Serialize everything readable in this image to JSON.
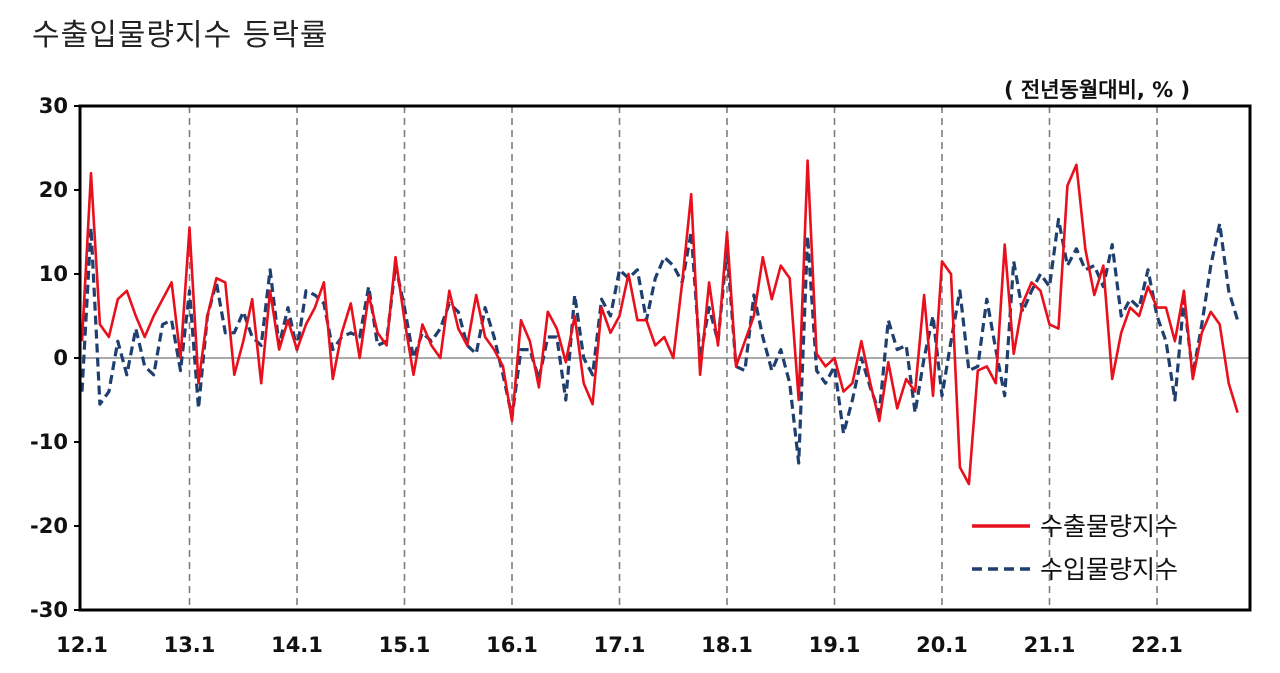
{
  "header": {
    "title": "수출입물량지수 등락률",
    "unit": "( 전년동월대비, % )"
  },
  "colors": {
    "export": "#e8101c",
    "import": "#1f3f6e",
    "grid": "#7f7f7f"
  },
  "chart_data": {
    "type": "line",
    "title": "수출입물량지수 등락률",
    "ylabel": "( 전년동월대비, % )",
    "xlabel": "",
    "ylim": [
      -30,
      30
    ],
    "yticks": [
      30,
      20,
      10,
      0,
      -10,
      -20,
      -30
    ],
    "xticks": [
      "12.1",
      "13.1",
      "14.1",
      "15.1",
      "16.1",
      "17.1",
      "18.1",
      "19.1",
      "20.1",
      "21.1",
      "22.1"
    ],
    "grid": "vertical dashed at each January",
    "legend_position": "bottom-right",
    "series": [
      {
        "name": "수출물량지수",
        "style": "solid",
        "color": "#e8101c",
        "values": [
          2,
          22,
          4,
          2.5,
          7,
          8,
          5,
          2.5,
          5,
          7,
          9,
          0,
          15.5,
          -3,
          5,
          9.5,
          9,
          -2,
          2,
          7,
          -3,
          8,
          1,
          4.5,
          1,
          4,
          6,
          9,
          -2.5,
          3,
          6.5,
          0,
          7.5,
          3,
          1.5,
          12,
          4.5,
          -2,
          4,
          1.5,
          0,
          8,
          3.5,
          1.5,
          7.5,
          2.5,
          1,
          -1,
          -7.5,
          4.5,
          2,
          -3.5,
          5.5,
          3.5,
          -0.5,
          5,
          -3,
          -5.5,
          6,
          3,
          5,
          10,
          4.5,
          4.5,
          1.5,
          2.5,
          0,
          9,
          19.5,
          -2,
          9,
          1.5,
          15,
          -1,
          2,
          5,
          12,
          7,
          11,
          9.5,
          -5,
          23.5,
          0.5,
          -1,
          0,
          -4,
          -3,
          2,
          -3,
          -7.5,
          -0.5,
          -6,
          -2.5,
          -4,
          7.5,
          -4.5,
          11.5,
          10,
          -13,
          -15,
          -1.5,
          -1,
          -3,
          13.5,
          0.5,
          6.5,
          9,
          8,
          4,
          3.5,
          20.5,
          23,
          13,
          7.5,
          11,
          -2.5,
          3,
          6,
          5,
          8.5,
          6,
          6,
          2,
          8,
          -2.5,
          3,
          5.5,
          4,
          -3,
          -6.5
        ]
      },
      {
        "name": "수입물량지수",
        "style": "dashed",
        "color": "#1f3f6e",
        "values": [
          -4,
          15.5,
          -5.5,
          -4,
          2,
          -2,
          3.5,
          -1,
          -2,
          4,
          4.5,
          -1.5,
          8,
          -6,
          5,
          9,
          3,
          3,
          5.5,
          2.5,
          1.5,
          10.5,
          1.5,
          6,
          1,
          8,
          7.5,
          6.5,
          1,
          2.5,
          3,
          2.5,
          8.5,
          1.5,
          2,
          11,
          6,
          0,
          3,
          2,
          3.5,
          6.5,
          5.5,
          1.5,
          0.5,
          6,
          2.5,
          -2,
          -7,
          1,
          1,
          -2.5,
          2.5,
          2.5,
          -5,
          7.5,
          0,
          -2,
          7,
          5,
          10.5,
          9.5,
          10.5,
          4.5,
          9.5,
          12,
          11,
          9,
          15,
          0,
          6,
          2,
          13,
          -1,
          -1.5,
          7.5,
          2.5,
          -1.5,
          1,
          -3,
          -12.5,
          14.5,
          -1.5,
          -3,
          -1,
          -9,
          -5,
          0,
          -3.5,
          -6.5,
          4.5,
          1,
          1.5,
          -6.5,
          0,
          5,
          -4.5,
          2,
          8,
          -1.5,
          -1,
          7,
          1,
          -4.5,
          11.5,
          5.5,
          8,
          10,
          8.5,
          16.5,
          11,
          13,
          10.5,
          11,
          8.5,
          13.5,
          5,
          7,
          6,
          10.5,
          5,
          2,
          -5,
          7,
          -2,
          4,
          11,
          16,
          8,
          4.5
        ]
      }
    ]
  }
}
